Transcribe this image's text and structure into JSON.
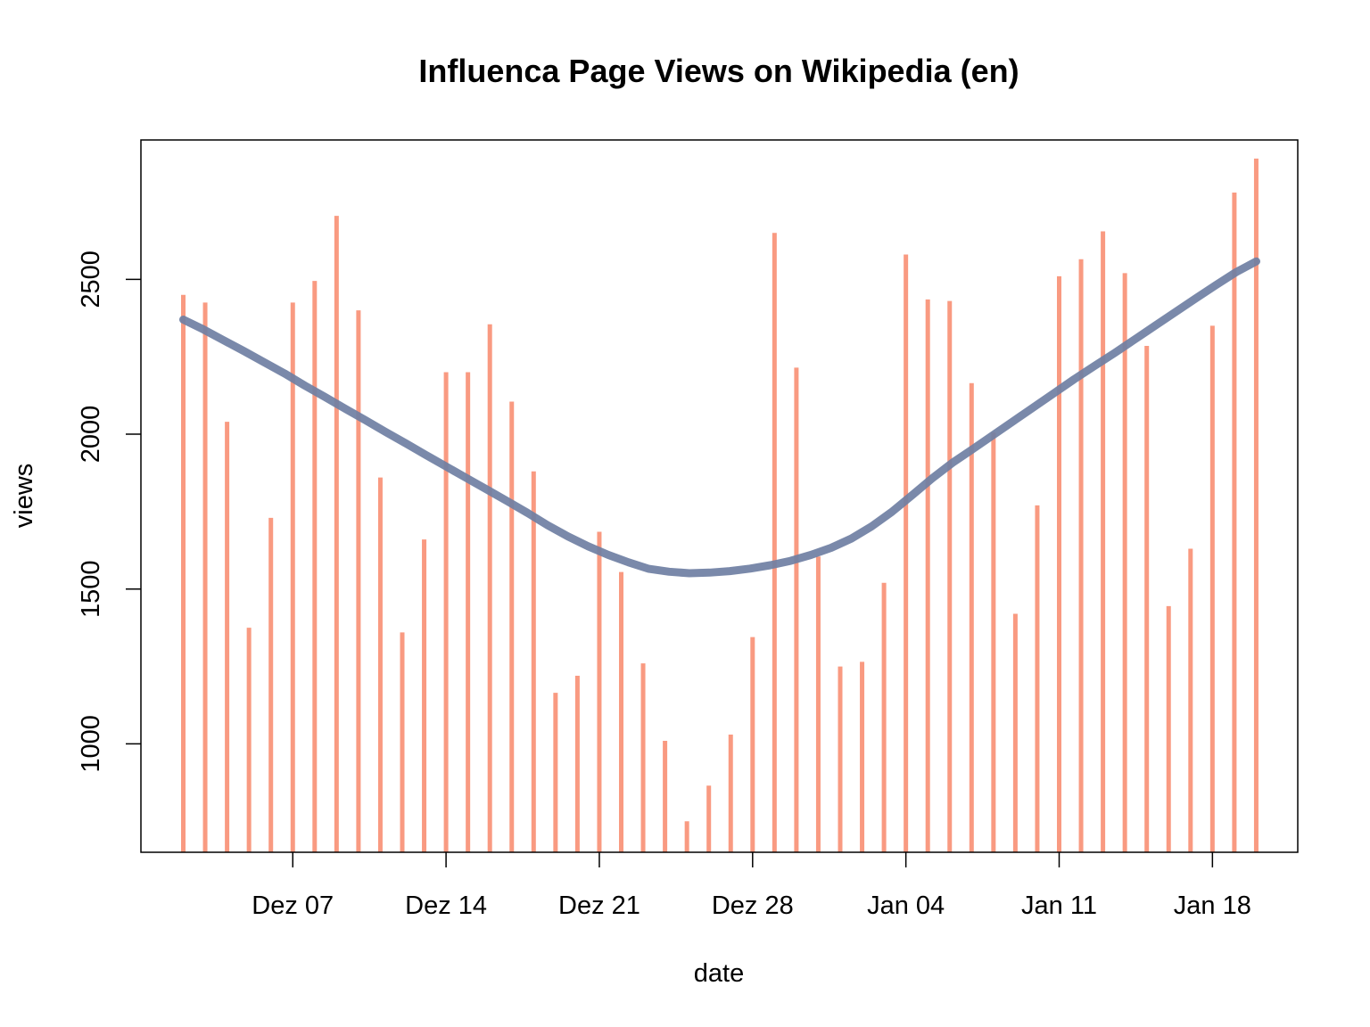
{
  "chart_data": {
    "type": "bar",
    "title": "Influenca Page Views on Wikipedia (en)",
    "xlabel": "date",
    "ylabel": "views",
    "x_start": "2015-12-02",
    "dates": [
      "Dez 02",
      "Dez 03",
      "Dez 04",
      "Dez 05",
      "Dez 06",
      "Dez 07",
      "Dez 08",
      "Dez 09",
      "Dez 10",
      "Dez 11",
      "Dez 12",
      "Dez 13",
      "Dez 14",
      "Dez 15",
      "Dez 16",
      "Dez 17",
      "Dez 18",
      "Dez 19",
      "Dez 20",
      "Dez 21",
      "Dez 22",
      "Dez 23",
      "Dez 24",
      "Dez 25",
      "Dez 26",
      "Dez 27",
      "Dez 28",
      "Dez 29",
      "Dez 30",
      "Dez 31",
      "Jan 01",
      "Jan 02",
      "Jan 03",
      "Jan 04",
      "Jan 05",
      "Jan 06",
      "Jan 07",
      "Jan 08",
      "Jan 09",
      "Jan 10",
      "Jan 11",
      "Jan 12",
      "Jan 13",
      "Jan 14",
      "Jan 15",
      "Jan 16",
      "Jan 17",
      "Jan 18",
      "Jan 19",
      "Jan 20"
    ],
    "values": [
      2450,
      2425,
      2040,
      1375,
      1730,
      2425,
      2495,
      2705,
      2400,
      1860,
      1360,
      1660,
      2200,
      2200,
      2355,
      2105,
      1880,
      1165,
      1220,
      1685,
      1555,
      1260,
      1010,
      750,
      865,
      1030,
      1345,
      2650,
      2215,
      1605,
      1250,
      1265,
      1520,
      2580,
      2435,
      2430,
      2165,
      2005,
      1420,
      1770,
      2510,
      2565,
      2655,
      2520,
      2285,
      1445,
      1630,
      2350,
      2780,
      2890
    ],
    "trend": [
      2370,
      2338,
      2303,
      2268,
      2232,
      2196,
      2157,
      2120,
      2082,
      2045,
      2007,
      1970,
      1932,
      1895,
      1858,
      1821,
      1784,
      1746,
      1706,
      1670,
      1638,
      1610,
      1586,
      1565,
      1556,
      1551,
      1553,
      1558,
      1566,
      1577,
      1591,
      1610,
      1633,
      1663,
      1702,
      1749,
      1803,
      1858,
      1908,
      1952,
      1997,
      2042,
      2087,
      2132,
      2177,
      2220,
      2262,
      2306,
      2350,
      2394,
      2438,
      2481,
      2523,
      2558
    ],
    "trend_x_end_index": 49,
    "x_ticks": [
      {
        "index": 5,
        "label": "Dez 07"
      },
      {
        "index": 12,
        "label": "Dez 14"
      },
      {
        "index": 19,
        "label": "Dez 21"
      },
      {
        "index": 26,
        "label": "Dez 28"
      },
      {
        "index": 33,
        "label": "Jan 04"
      },
      {
        "index": 40,
        "label": "Jan 11"
      },
      {
        "index": 47,
        "label": "Jan 18"
      }
    ],
    "y_ticks": [
      1000,
      1500,
      2000,
      2500
    ],
    "ylim": [
      650,
      2950
    ],
    "bar_color": "#f99a81",
    "trend_color": "#6f7fa3",
    "grid": false
  }
}
